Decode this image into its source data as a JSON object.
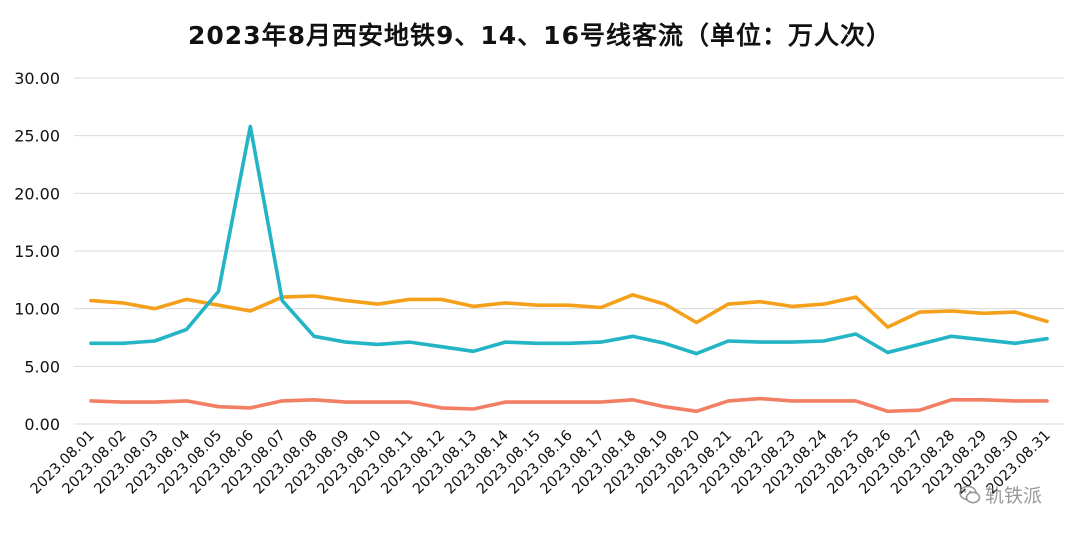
{
  "chart_data": {
    "type": "line",
    "title": "2023年8月西安地铁9、14、16号线客流（单位：万人次）",
    "ylim": [
      0,
      30
    ],
    "yticks": [
      "0.00",
      "5.00",
      "10.00",
      "15.00",
      "20.00",
      "25.00",
      "30.00"
    ],
    "grid": true,
    "legend": "none",
    "categories": [
      "2023.08.01",
      "2023.08.02",
      "2023.08.03",
      "2023.08.04",
      "2023.08.05",
      "2023.08.06",
      "2023.08.07",
      "2023.08.08",
      "2023.08.09",
      "2023.08.10",
      "2023.08.11",
      "2023.08.12",
      "2023.08.13",
      "2023.08.14",
      "2023.08.15",
      "2023.08.16",
      "2023.08.17",
      "2023.08.18",
      "2023.08.19",
      "2023.08.20",
      "2023.08.21",
      "2023.08.22",
      "2023.08.23",
      "2023.08.24",
      "2023.08.25",
      "2023.08.26",
      "2023.08.27",
      "2023.08.28",
      "2023.08.29",
      "2023.08.30",
      "2023.08.31"
    ],
    "series": [
      {
        "color": "#F5A01A",
        "values": [
          10.7,
          10.5,
          10.0,
          10.8,
          10.3,
          9.8,
          11.0,
          11.1,
          10.7,
          10.4,
          10.8,
          10.8,
          10.2,
          10.5,
          10.3,
          10.3,
          10.1,
          11.2,
          10.4,
          8.8,
          10.4,
          10.6,
          10.2,
          10.4,
          11.0,
          8.4,
          9.7,
          9.8,
          9.6,
          9.7,
          8.9
        ]
      },
      {
        "color": "#23B4C6",
        "values": [
          7.0,
          7.0,
          7.2,
          8.2,
          11.5,
          25.8,
          10.7,
          7.6,
          7.1,
          6.9,
          7.1,
          6.7,
          6.3,
          7.1,
          7.0,
          7.0,
          7.1,
          7.6,
          7.0,
          6.1,
          7.2,
          7.1,
          7.1,
          7.2,
          7.8,
          6.2,
          6.9,
          7.6,
          7.3,
          7.0,
          7.4
        ]
      },
      {
        "color": "#F27E63",
        "values": [
          2.0,
          1.9,
          1.9,
          2.0,
          1.5,
          1.4,
          2.0,
          2.1,
          1.9,
          1.9,
          1.9,
          1.4,
          1.3,
          1.9,
          1.9,
          1.9,
          1.9,
          2.1,
          1.5,
          1.1,
          2.0,
          2.2,
          2.0,
          2.0,
          2.0,
          1.1,
          1.2,
          2.1,
          2.1,
          2.0,
          2.0
        ]
      }
    ]
  },
  "watermark": {
    "text": "轨铁派",
    "icon": "wechat-icon"
  }
}
